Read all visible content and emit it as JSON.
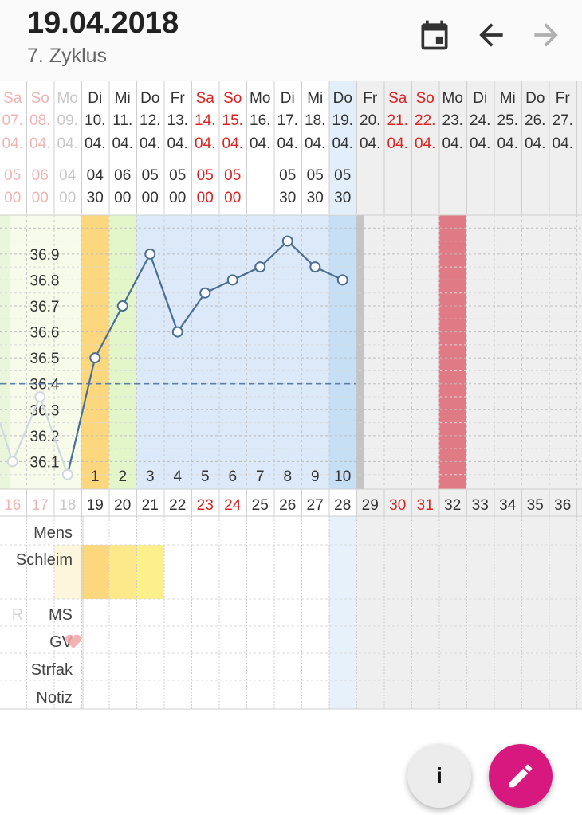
{
  "header": {
    "date": "19.04.2018",
    "cycle": "7. Zyklus",
    "calendar_icon": "calendar-icon",
    "back_icon": "arrow-back-icon",
    "forward_icon": "arrow-forward-icon"
  },
  "days": [
    {
      "wd": "Sa",
      "d": "07.",
      "m": "04.",
      "t1": "05",
      "t2": "00",
      "cd": "16",
      "weekend": true,
      "faded": true
    },
    {
      "wd": "So",
      "d": "08.",
      "m": "04.",
      "t1": "06",
      "t2": "00",
      "cd": "17",
      "weekend": true,
      "faded": true
    },
    {
      "wd": "Mo",
      "d": "09.",
      "m": "04.",
      "t1": "04",
      "t2": "00",
      "cd": "18",
      "weekend": false,
      "faded": true
    },
    {
      "wd": "Di",
      "d": "10.",
      "m": "04.",
      "t1": "04",
      "t2": "30",
      "cd": "19",
      "weekend": false
    },
    {
      "wd": "Mi",
      "d": "11.",
      "m": "04.",
      "t1": "06",
      "t2": "00",
      "cd": "20",
      "weekend": false
    },
    {
      "wd": "Do",
      "d": "12.",
      "m": "04.",
      "t1": "05",
      "t2": "00",
      "cd": "21",
      "weekend": false
    },
    {
      "wd": "Fr",
      "d": "13.",
      "m": "04.",
      "t1": "05",
      "t2": "00",
      "cd": "22",
      "weekend": false
    },
    {
      "wd": "Sa",
      "d": "14.",
      "m": "04.",
      "t1": "05",
      "t2": "00",
      "cd": "23",
      "weekend": true
    },
    {
      "wd": "So",
      "d": "15.",
      "m": "04.",
      "t1": "05",
      "t2": "00",
      "cd": "24",
      "weekend": true
    },
    {
      "wd": "Mo",
      "d": "16.",
      "m": "04.",
      "t1": "",
      "t2": "",
      "cd": "25",
      "weekend": false
    },
    {
      "wd": "Di",
      "d": "17.",
      "m": "04.",
      "t1": "05",
      "t2": "30",
      "cd": "26",
      "weekend": false
    },
    {
      "wd": "Mi",
      "d": "18.",
      "m": "04.",
      "t1": "05",
      "t2": "30",
      "cd": "27",
      "weekend": false
    },
    {
      "wd": "Do",
      "d": "19.",
      "m": "04.",
      "t1": "05",
      "t2": "30",
      "cd": "28",
      "weekend": false,
      "today": true
    },
    {
      "wd": "Fr",
      "d": "20.",
      "m": "04.",
      "t1": "",
      "t2": "",
      "cd": "29",
      "weekend": false,
      "future": true
    },
    {
      "wd": "Sa",
      "d": "21.",
      "m": "04.",
      "t1": "",
      "t2": "",
      "cd": "30",
      "weekend": true,
      "future": true
    },
    {
      "wd": "So",
      "d": "22.",
      "m": "04.",
      "t1": "",
      "t2": "",
      "cd": "31",
      "weekend": true,
      "future": true
    },
    {
      "wd": "Mo",
      "d": "23.",
      "m": "04.",
      "t1": "",
      "t2": "",
      "cd": "32",
      "weekend": false,
      "future": true
    },
    {
      "wd": "Di",
      "d": "24.",
      "m": "04.",
      "t1": "",
      "t2": "",
      "cd": "33",
      "weekend": false,
      "future": true
    },
    {
      "wd": "Mi",
      "d": "25.",
      "m": "04.",
      "t1": "",
      "t2": "",
      "cd": "34",
      "weekend": false,
      "future": true
    },
    {
      "wd": "Do",
      "d": "26.",
      "m": "04.",
      "t1": "",
      "t2": "",
      "cd": "35",
      "weekend": false,
      "future": true
    },
    {
      "wd": "Fr",
      "d": "27.",
      "m": "04.",
      "t1": "",
      "t2": "",
      "cd": "36",
      "weekend": false,
      "future": true
    }
  ],
  "chart_data": {
    "type": "line",
    "x": [
      "07.04.",
      "08.04.",
      "09.04.",
      "10.04.",
      "11.04.",
      "12.04.",
      "13.04.",
      "14.04.",
      "15.04.",
      "16.04.",
      "17.04.",
      "18.04.",
      "19.04."
    ],
    "series": [
      {
        "values": [
          36.1,
          36.35,
          36.05,
          36.5,
          36.7,
          36.9,
          36.6,
          36.75,
          36.8,
          36.85,
          36.95,
          36.85,
          36.8
        ]
      }
    ],
    "ylim": [
      36.0,
      37.05
    ],
    "y_ticks": [
      "36.1",
      "36.2",
      "36.3",
      "36.4",
      "36.5",
      "36.6",
      "36.7",
      "36.8",
      "36.9"
    ],
    "coverline": 36.4,
    "high_phase_counts": [
      "1",
      "2",
      "3",
      "4",
      "5",
      "6",
      "7",
      "8",
      "9",
      "10"
    ],
    "grid": true
  },
  "row_labels": {
    "mens": "Mens",
    "schleim": "Schleim",
    "ms": "MS",
    "ms_faded": "R",
    "gv": "GV",
    "strfak": "Strfak",
    "notiz": "Notiz"
  },
  "colors": {
    "line": "#4a6f94",
    "coverline": "#5a7fa8",
    "weekend_red": "#e02020",
    "high_phase_blue": "#dce9f8",
    "today_blue": "#c7dff4",
    "period_red": "#e07a84",
    "mucus_yellow": "#fdf08a",
    "mucus_orange": "#fdd77e",
    "fab_pink": "#d6187f"
  },
  "fab": {
    "info_label": "i",
    "edit_icon": "pencil-icon"
  }
}
